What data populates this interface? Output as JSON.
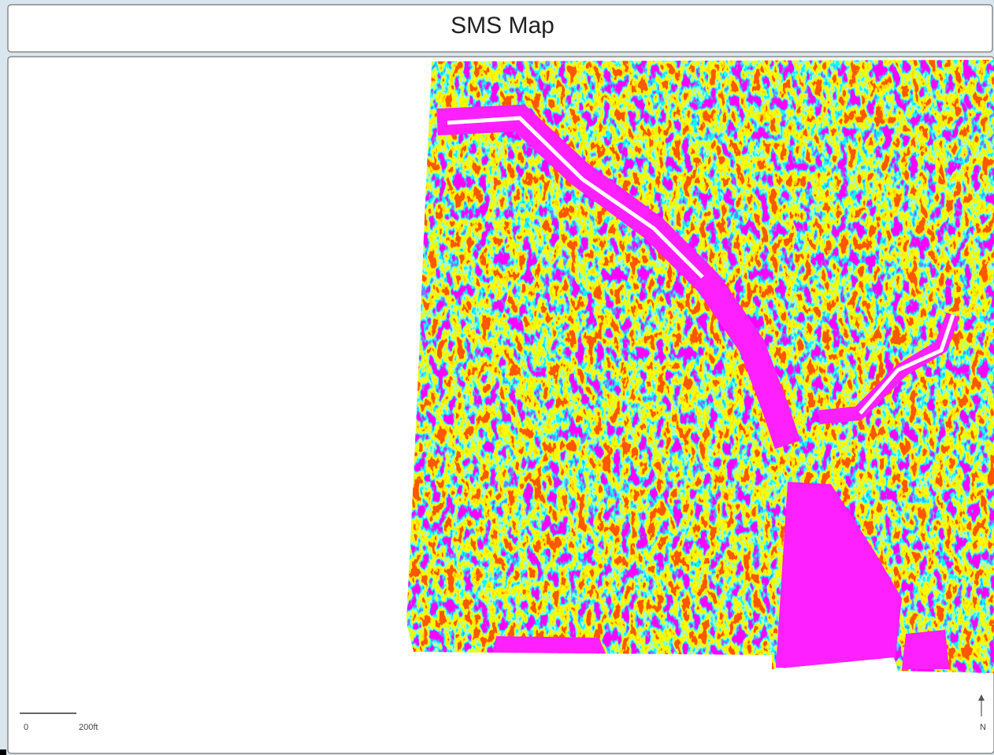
{
  "header": {
    "title": "SMS Map"
  },
  "scale_bar": {
    "start": "0",
    "end": "200ft"
  },
  "north_arrow": {
    "label": "N"
  }
}
